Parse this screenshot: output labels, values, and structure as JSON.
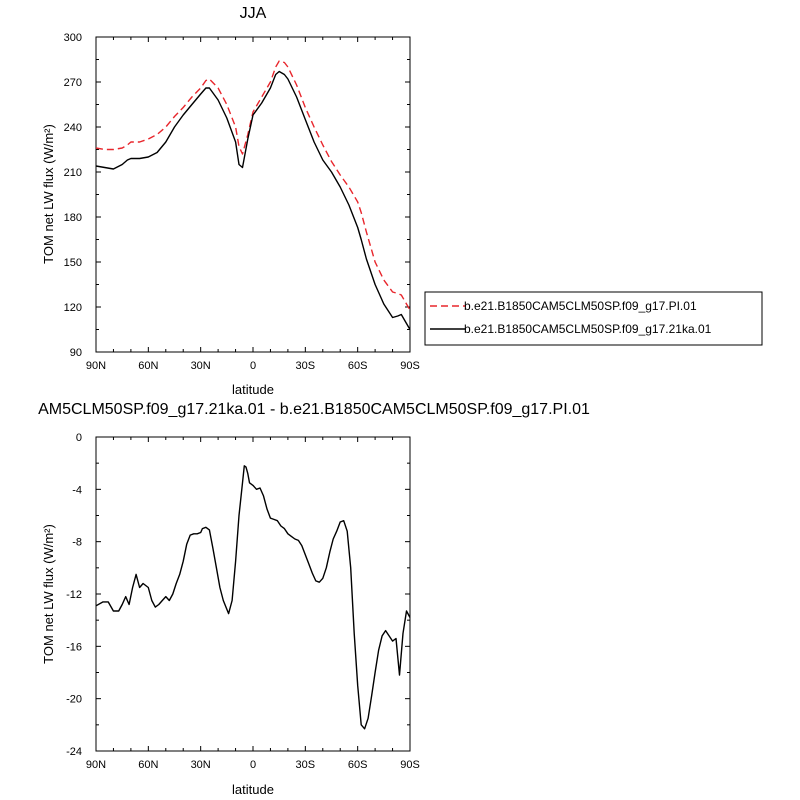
{
  "chart_data": [
    {
      "type": "line",
      "title": "JJA",
      "xlabel": "latitude",
      "ylabel": "TOM net LW flux (W/m²)",
      "xticks": [
        -90,
        -60,
        -30,
        0,
        30,
        60,
        90
      ],
      "xticklabels": [
        "90N",
        "60N",
        "30N",
        "0",
        "30S",
        "60S",
        "90S"
      ],
      "xlim": [
        -90,
        90
      ],
      "ylim": [
        90,
        300
      ],
      "yticks": [
        90,
        120,
        150,
        180,
        210,
        240,
        270,
        300
      ],
      "yticklabels": [
        "90",
        "120",
        "150",
        "180",
        "210",
        "240",
        "270",
        "300"
      ],
      "legend_position": "right",
      "series": [
        {
          "name": "b.e21.B1850CAM5CLM50SP.f09_g17.PI.01",
          "color": "#e8262c",
          "dash": "dashed",
          "x": [
            -90,
            -85,
            -80,
            -75,
            -72,
            -70,
            -65,
            -60,
            -55,
            -50,
            -45,
            -40,
            -35,
            -30,
            -27,
            -25,
            -20,
            -15,
            -10,
            -8,
            -6,
            -3,
            0,
            5,
            10,
            13,
            15,
            18,
            20,
            25,
            30,
            35,
            40,
            45,
            50,
            55,
            60,
            62,
            65,
            70,
            75,
            80,
            83,
            85,
            88,
            90
          ],
          "y": [
            226,
            225,
            225,
            226,
            228,
            230,
            230,
            232,
            235,
            240,
            247,
            253,
            260,
            266,
            271,
            272,
            266,
            255,
            240,
            227,
            222,
            235,
            250,
            260,
            270,
            280,
            284,
            283,
            280,
            268,
            253,
            240,
            228,
            217,
            208,
            200,
            190,
            183,
            170,
            150,
            138,
            130,
            129,
            128,
            122,
            118
          ]
        },
        {
          "name": "b.e21.B1850CAM5CLM50SP.f09_g17.21ka.01",
          "color": "#000000",
          "dash": "solid",
          "x": [
            -90,
            -85,
            -80,
            -75,
            -72,
            -70,
            -65,
            -60,
            -55,
            -50,
            -45,
            -40,
            -35,
            -30,
            -27,
            -25,
            -20,
            -15,
            -10,
            -8,
            -6,
            -3,
            0,
            5,
            10,
            13,
            15,
            18,
            20,
            25,
            30,
            35,
            40,
            45,
            50,
            55,
            60,
            62,
            65,
            70,
            75,
            80,
            83,
            85,
            88,
            90
          ],
          "y": [
            214,
            213,
            212,
            215,
            218,
            219,
            219,
            220,
            223,
            230,
            240,
            248,
            255,
            262,
            266,
            266,
            258,
            246,
            230,
            215,
            213,
            232,
            248,
            256,
            266,
            275,
            277,
            275,
            272,
            260,
            245,
            230,
            218,
            210,
            200,
            188,
            173,
            165,
            152,
            135,
            122,
            113,
            114,
            115,
            109,
            105
          ]
        }
      ]
    },
    {
      "type": "line",
      "title": "AM5CLM50SP.f09_g17.21ka.01 - b.e21.B1850CAM5CLM50SP.f09_g17.PI.01",
      "xlabel": "latitude",
      "ylabel": "TOM net LW flux (W/m²)",
      "xticks": [
        -90,
        -60,
        -30,
        0,
        30,
        60,
        90
      ],
      "xticklabels": [
        "90N",
        "60N",
        "30N",
        "0",
        "30S",
        "60S",
        "90S"
      ],
      "xlim": [
        -90,
        90
      ],
      "ylim": [
        -24,
        0
      ],
      "yticks": [
        -24,
        -20,
        -16,
        -12,
        -8,
        -4,
        0
      ],
      "yticklabels": [
        "-24",
        "-20",
        "-16",
        "-12",
        "-8",
        "-4",
        "0"
      ],
      "series": [
        {
          "color": "#000000",
          "dash": "solid",
          "x": [
            -90,
            -86,
            -83,
            -80,
            -77,
            -75,
            -73,
            -71,
            -69,
            -67,
            -65,
            -63,
            -60,
            -58,
            -56,
            -54,
            -52,
            -50,
            -48,
            -46,
            -44,
            -42,
            -40,
            -38,
            -36,
            -34,
            -32,
            -30,
            -29,
            -27,
            -25,
            -23,
            -21,
            -19,
            -17,
            -14,
            -12,
            -10,
            -8,
            -6,
            -5,
            -4,
            -3,
            -2,
            0,
            2,
            4,
            6,
            8,
            10,
            12,
            14,
            16,
            18,
            20,
            22,
            24,
            26,
            28,
            30,
            32,
            34,
            36,
            38,
            40,
            42,
            44,
            46,
            48,
            50,
            52,
            54,
            56,
            58,
            60,
            62,
            64,
            66,
            68,
            70,
            72,
            74,
            76,
            78,
            80,
            82,
            84,
            86,
            88,
            90
          ],
          "y": [
            -12.9,
            -12.6,
            -12.6,
            -13.3,
            -13.3,
            -12.8,
            -12.2,
            -12.8,
            -11.5,
            -10.5,
            -11.5,
            -11.2,
            -11.5,
            -12.5,
            -13.0,
            -12.8,
            -12.5,
            -12.2,
            -12.5,
            -12.0,
            -11.2,
            -10.5,
            -9.5,
            -8.2,
            -7.5,
            -7.4,
            -7.4,
            -7.3,
            -7.0,
            -6.9,
            -7.1,
            -8.5,
            -10.0,
            -11.5,
            -12.5,
            -13.5,
            -12.5,
            -9.5,
            -6.0,
            -3.5,
            -2.2,
            -2.3,
            -2.8,
            -3.5,
            -3.7,
            -4.0,
            -3.9,
            -4.5,
            -5.5,
            -6.2,
            -6.3,
            -6.4,
            -6.8,
            -7.0,
            -7.4,
            -7.6,
            -7.8,
            -7.9,
            -8.3,
            -9.0,
            -9.7,
            -10.4,
            -11.0,
            -11.1,
            -10.8,
            -10.0,
            -8.8,
            -7.8,
            -7.2,
            -6.5,
            -6.4,
            -7.2,
            -10.0,
            -15.0,
            -19.0,
            -22.0,
            -22.3,
            -21.5,
            -19.8,
            -18.0,
            -16.3,
            -15.2,
            -14.8,
            -15.2,
            -15.6,
            -15.4,
            -18.2,
            -15.0,
            -13.3,
            -13.8
          ]
        }
      ]
    }
  ]
}
